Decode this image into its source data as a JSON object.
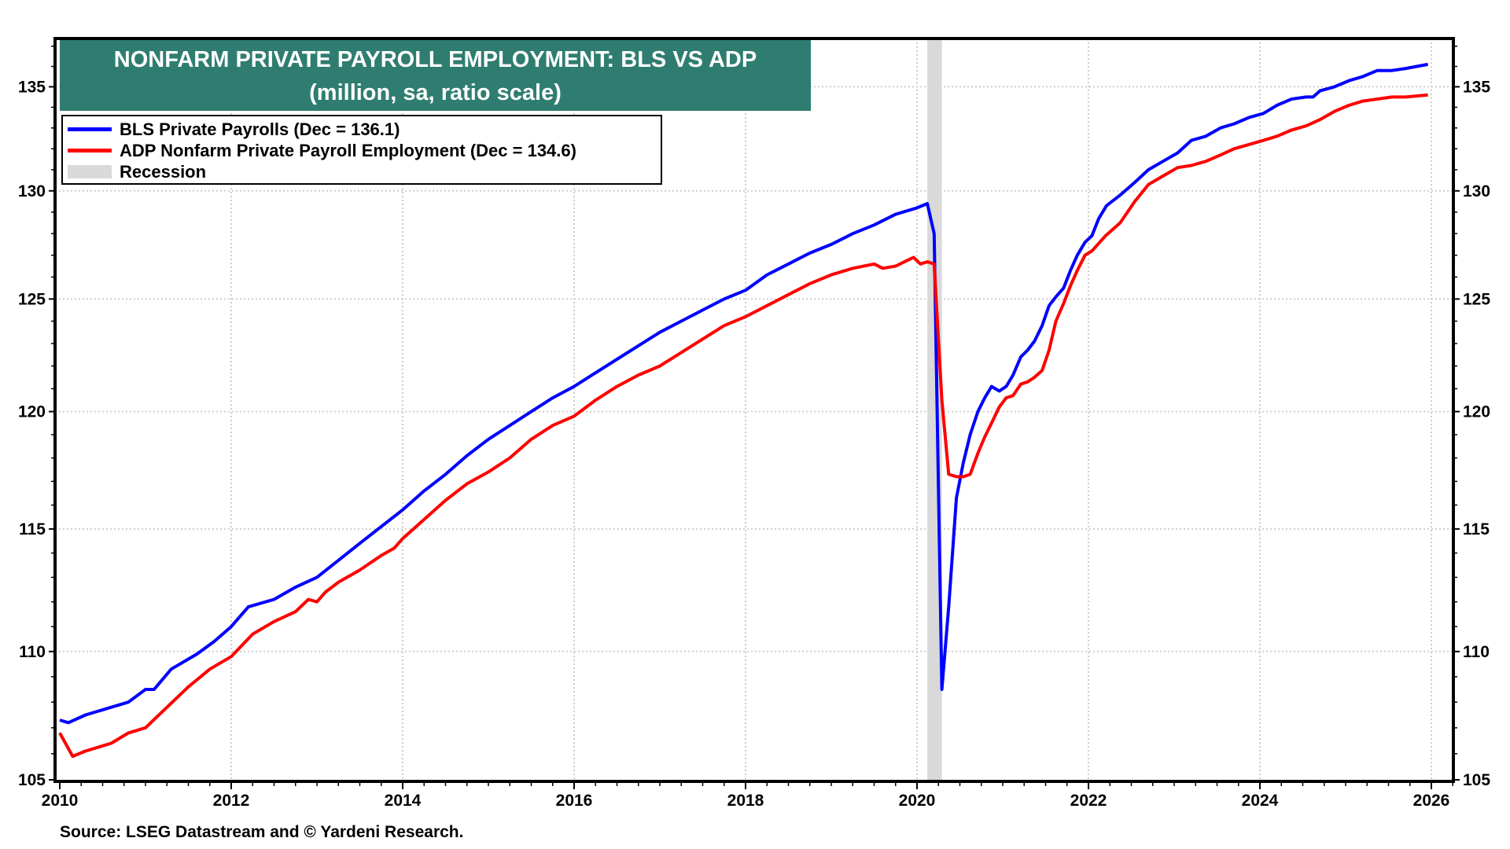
{
  "chart_data": {
    "type": "line",
    "title": "NONFARM PRIVATE PAYROLL EMPLOYMENT: BLS VS ADP",
    "subtitle": "(million, sa, ratio scale)",
    "xlabel": "",
    "ylabel": "",
    "scale": "log",
    "xlim": [
      2010,
      2026.3
    ],
    "ylim": [
      105,
      137.4
    ],
    "x_ticks": [
      "2010",
      "2012",
      "2014",
      "2016",
      "2018",
      "2020",
      "2022",
      "2024",
      "2026"
    ],
    "x_tick_values": [
      2010,
      2012,
      2014,
      2016,
      2018,
      2020,
      2022,
      2024,
      2026
    ],
    "y_ticks": [
      "105",
      "110",
      "115",
      "120",
      "125",
      "130",
      "135"
    ],
    "y_tick_values": [
      105,
      110,
      115,
      120,
      125,
      130,
      135
    ],
    "grid": true,
    "legend_placement": "top-left",
    "recession": {
      "label": "Recession",
      "start": 2020.12,
      "end": 2020.29,
      "color": "#d9d9d9"
    },
    "series": [
      {
        "name": "BLS Private Payrolls",
        "legend": "BLS Private Payrolls  (Dec  = 136.1)",
        "color": "#0000ff",
        "points": [
          [
            2010.0,
            107.3
          ],
          [
            2010.1,
            107.2
          ],
          [
            2010.3,
            107.5
          ],
          [
            2010.6,
            107.8
          ],
          [
            2010.8,
            108.0
          ],
          [
            2011.0,
            108.5
          ],
          [
            2011.1,
            108.5
          ],
          [
            2011.3,
            109.3
          ],
          [
            2011.6,
            109.9
          ],
          [
            2011.8,
            110.4
          ],
          [
            2012.0,
            111.0
          ],
          [
            2012.2,
            111.8
          ],
          [
            2012.5,
            112.1
          ],
          [
            2012.75,
            112.6
          ],
          [
            2013.0,
            113.0
          ],
          [
            2013.25,
            113.7
          ],
          [
            2013.5,
            114.4
          ],
          [
            2013.75,
            115.1
          ],
          [
            2014.0,
            115.8
          ],
          [
            2014.25,
            116.6
          ],
          [
            2014.5,
            117.3
          ],
          [
            2014.75,
            118.1
          ],
          [
            2015.0,
            118.8
          ],
          [
            2015.25,
            119.4
          ],
          [
            2015.5,
            120.0
          ],
          [
            2015.75,
            120.6
          ],
          [
            2016.0,
            121.1
          ],
          [
            2016.25,
            121.7
          ],
          [
            2016.5,
            122.3
          ],
          [
            2016.75,
            122.9
          ],
          [
            2017.0,
            123.5
          ],
          [
            2017.25,
            124.0
          ],
          [
            2017.5,
            124.5
          ],
          [
            2017.75,
            125.0
          ],
          [
            2018.0,
            125.4
          ],
          [
            2018.25,
            126.1
          ],
          [
            2018.5,
            126.6
          ],
          [
            2018.75,
            127.1
          ],
          [
            2019.0,
            127.5
          ],
          [
            2019.25,
            128.0
          ],
          [
            2019.5,
            128.4
          ],
          [
            2019.75,
            128.9
          ],
          [
            2020.0,
            129.2
          ],
          [
            2020.12,
            129.4
          ],
          [
            2020.2,
            128.0
          ],
          [
            2020.29,
            108.5
          ],
          [
            2020.37,
            111.8
          ],
          [
            2020.46,
            116.3
          ],
          [
            2020.54,
            117.8
          ],
          [
            2020.62,
            119.0
          ],
          [
            2020.71,
            120.0
          ],
          [
            2020.79,
            120.6
          ],
          [
            2020.87,
            121.1
          ],
          [
            2020.96,
            120.9
          ],
          [
            2021.04,
            121.1
          ],
          [
            2021.12,
            121.6
          ],
          [
            2021.21,
            122.4
          ],
          [
            2021.29,
            122.7
          ],
          [
            2021.37,
            123.1
          ],
          [
            2021.46,
            123.8
          ],
          [
            2021.54,
            124.7
          ],
          [
            2021.62,
            125.1
          ],
          [
            2021.71,
            125.5
          ],
          [
            2021.79,
            126.3
          ],
          [
            2021.87,
            127.0
          ],
          [
            2021.96,
            127.6
          ],
          [
            2022.04,
            127.9
          ],
          [
            2022.12,
            128.7
          ],
          [
            2022.21,
            129.3
          ],
          [
            2022.37,
            129.8
          ],
          [
            2022.54,
            130.4
          ],
          [
            2022.7,
            131.0
          ],
          [
            2022.87,
            131.4
          ],
          [
            2023.04,
            131.8
          ],
          [
            2023.2,
            132.4
          ],
          [
            2023.37,
            132.6
          ],
          [
            2023.54,
            133.0
          ],
          [
            2023.7,
            133.2
          ],
          [
            2023.87,
            133.5
          ],
          [
            2024.04,
            133.7
          ],
          [
            2024.2,
            134.1
          ],
          [
            2024.37,
            134.4
          ],
          [
            2024.54,
            134.5
          ],
          [
            2024.62,
            134.5
          ],
          [
            2024.7,
            134.8
          ],
          [
            2024.87,
            135.0
          ],
          [
            2025.04,
            135.3
          ],
          [
            2025.2,
            135.5
          ],
          [
            2025.37,
            135.8
          ],
          [
            2025.54,
            135.8
          ],
          [
            2025.7,
            135.9
          ],
          [
            2025.96,
            136.1
          ]
        ]
      },
      {
        "name": "ADP Nonfarm Private Payroll Employment",
        "legend": "ADP Nonfarm Private Payroll Employment  (Dec  = 134.6)",
        "color": "#ff0000",
        "points": [
          [
            2010.0,
            106.8
          ],
          [
            2010.15,
            105.9
          ],
          [
            2010.3,
            106.1
          ],
          [
            2010.6,
            106.4
          ],
          [
            2010.8,
            106.8
          ],
          [
            2011.0,
            107.0
          ],
          [
            2011.25,
            107.8
          ],
          [
            2011.5,
            108.6
          ],
          [
            2011.75,
            109.3
          ],
          [
            2012.0,
            109.8
          ],
          [
            2012.25,
            110.7
          ],
          [
            2012.5,
            111.2
          ],
          [
            2012.75,
            111.6
          ],
          [
            2012.9,
            112.1
          ],
          [
            2013.0,
            112.0
          ],
          [
            2013.1,
            112.4
          ],
          [
            2013.25,
            112.8
          ],
          [
            2013.5,
            113.3
          ],
          [
            2013.75,
            113.9
          ],
          [
            2013.9,
            114.2
          ],
          [
            2014.0,
            114.6
          ],
          [
            2014.25,
            115.4
          ],
          [
            2014.5,
            116.2
          ],
          [
            2014.75,
            116.9
          ],
          [
            2015.0,
            117.4
          ],
          [
            2015.25,
            118.0
          ],
          [
            2015.5,
            118.8
          ],
          [
            2015.75,
            119.4
          ],
          [
            2016.0,
            119.8
          ],
          [
            2016.25,
            120.5
          ],
          [
            2016.5,
            121.1
          ],
          [
            2016.75,
            121.6
          ],
          [
            2017.0,
            122.0
          ],
          [
            2017.25,
            122.6
          ],
          [
            2017.5,
            123.2
          ],
          [
            2017.75,
            123.8
          ],
          [
            2018.0,
            124.2
          ],
          [
            2018.25,
            124.7
          ],
          [
            2018.5,
            125.2
          ],
          [
            2018.75,
            125.7
          ],
          [
            2019.0,
            126.1
          ],
          [
            2019.25,
            126.4
          ],
          [
            2019.5,
            126.6
          ],
          [
            2019.6,
            126.4
          ],
          [
            2019.75,
            126.5
          ],
          [
            2019.96,
            126.9
          ],
          [
            2020.04,
            126.6
          ],
          [
            2020.12,
            126.7
          ],
          [
            2020.2,
            126.6
          ],
          [
            2020.29,
            120.5
          ],
          [
            2020.37,
            117.3
          ],
          [
            2020.46,
            117.2
          ],
          [
            2020.54,
            117.2
          ],
          [
            2020.62,
            117.3
          ],
          [
            2020.71,
            118.2
          ],
          [
            2020.79,
            118.9
          ],
          [
            2020.87,
            119.5
          ],
          [
            2020.96,
            120.2
          ],
          [
            2021.04,
            120.6
          ],
          [
            2021.12,
            120.7
          ],
          [
            2021.21,
            121.2
          ],
          [
            2021.29,
            121.3
          ],
          [
            2021.37,
            121.5
          ],
          [
            2021.46,
            121.8
          ],
          [
            2021.54,
            122.7
          ],
          [
            2021.62,
            124.0
          ],
          [
            2021.71,
            124.8
          ],
          [
            2021.79,
            125.6
          ],
          [
            2021.87,
            126.3
          ],
          [
            2021.96,
            127.0
          ],
          [
            2022.04,
            127.2
          ],
          [
            2022.2,
            127.9
          ],
          [
            2022.37,
            128.5
          ],
          [
            2022.54,
            129.5
          ],
          [
            2022.7,
            130.3
          ],
          [
            2022.87,
            130.7
          ],
          [
            2023.04,
            131.1
          ],
          [
            2023.2,
            131.2
          ],
          [
            2023.37,
            131.4
          ],
          [
            2023.54,
            131.7
          ],
          [
            2023.7,
            132.0
          ],
          [
            2023.87,
            132.2
          ],
          [
            2024.04,
            132.4
          ],
          [
            2024.2,
            132.6
          ],
          [
            2024.37,
            132.9
          ],
          [
            2024.54,
            133.1
          ],
          [
            2024.7,
            133.4
          ],
          [
            2024.87,
            133.8
          ],
          [
            2025.04,
            134.1
          ],
          [
            2025.2,
            134.3
          ],
          [
            2025.37,
            134.4
          ],
          [
            2025.54,
            134.5
          ],
          [
            2025.7,
            134.5
          ],
          [
            2025.96,
            134.6
          ]
        ]
      }
    ]
  },
  "source": "Source: LSEG Datastream and © Yardeni Research."
}
